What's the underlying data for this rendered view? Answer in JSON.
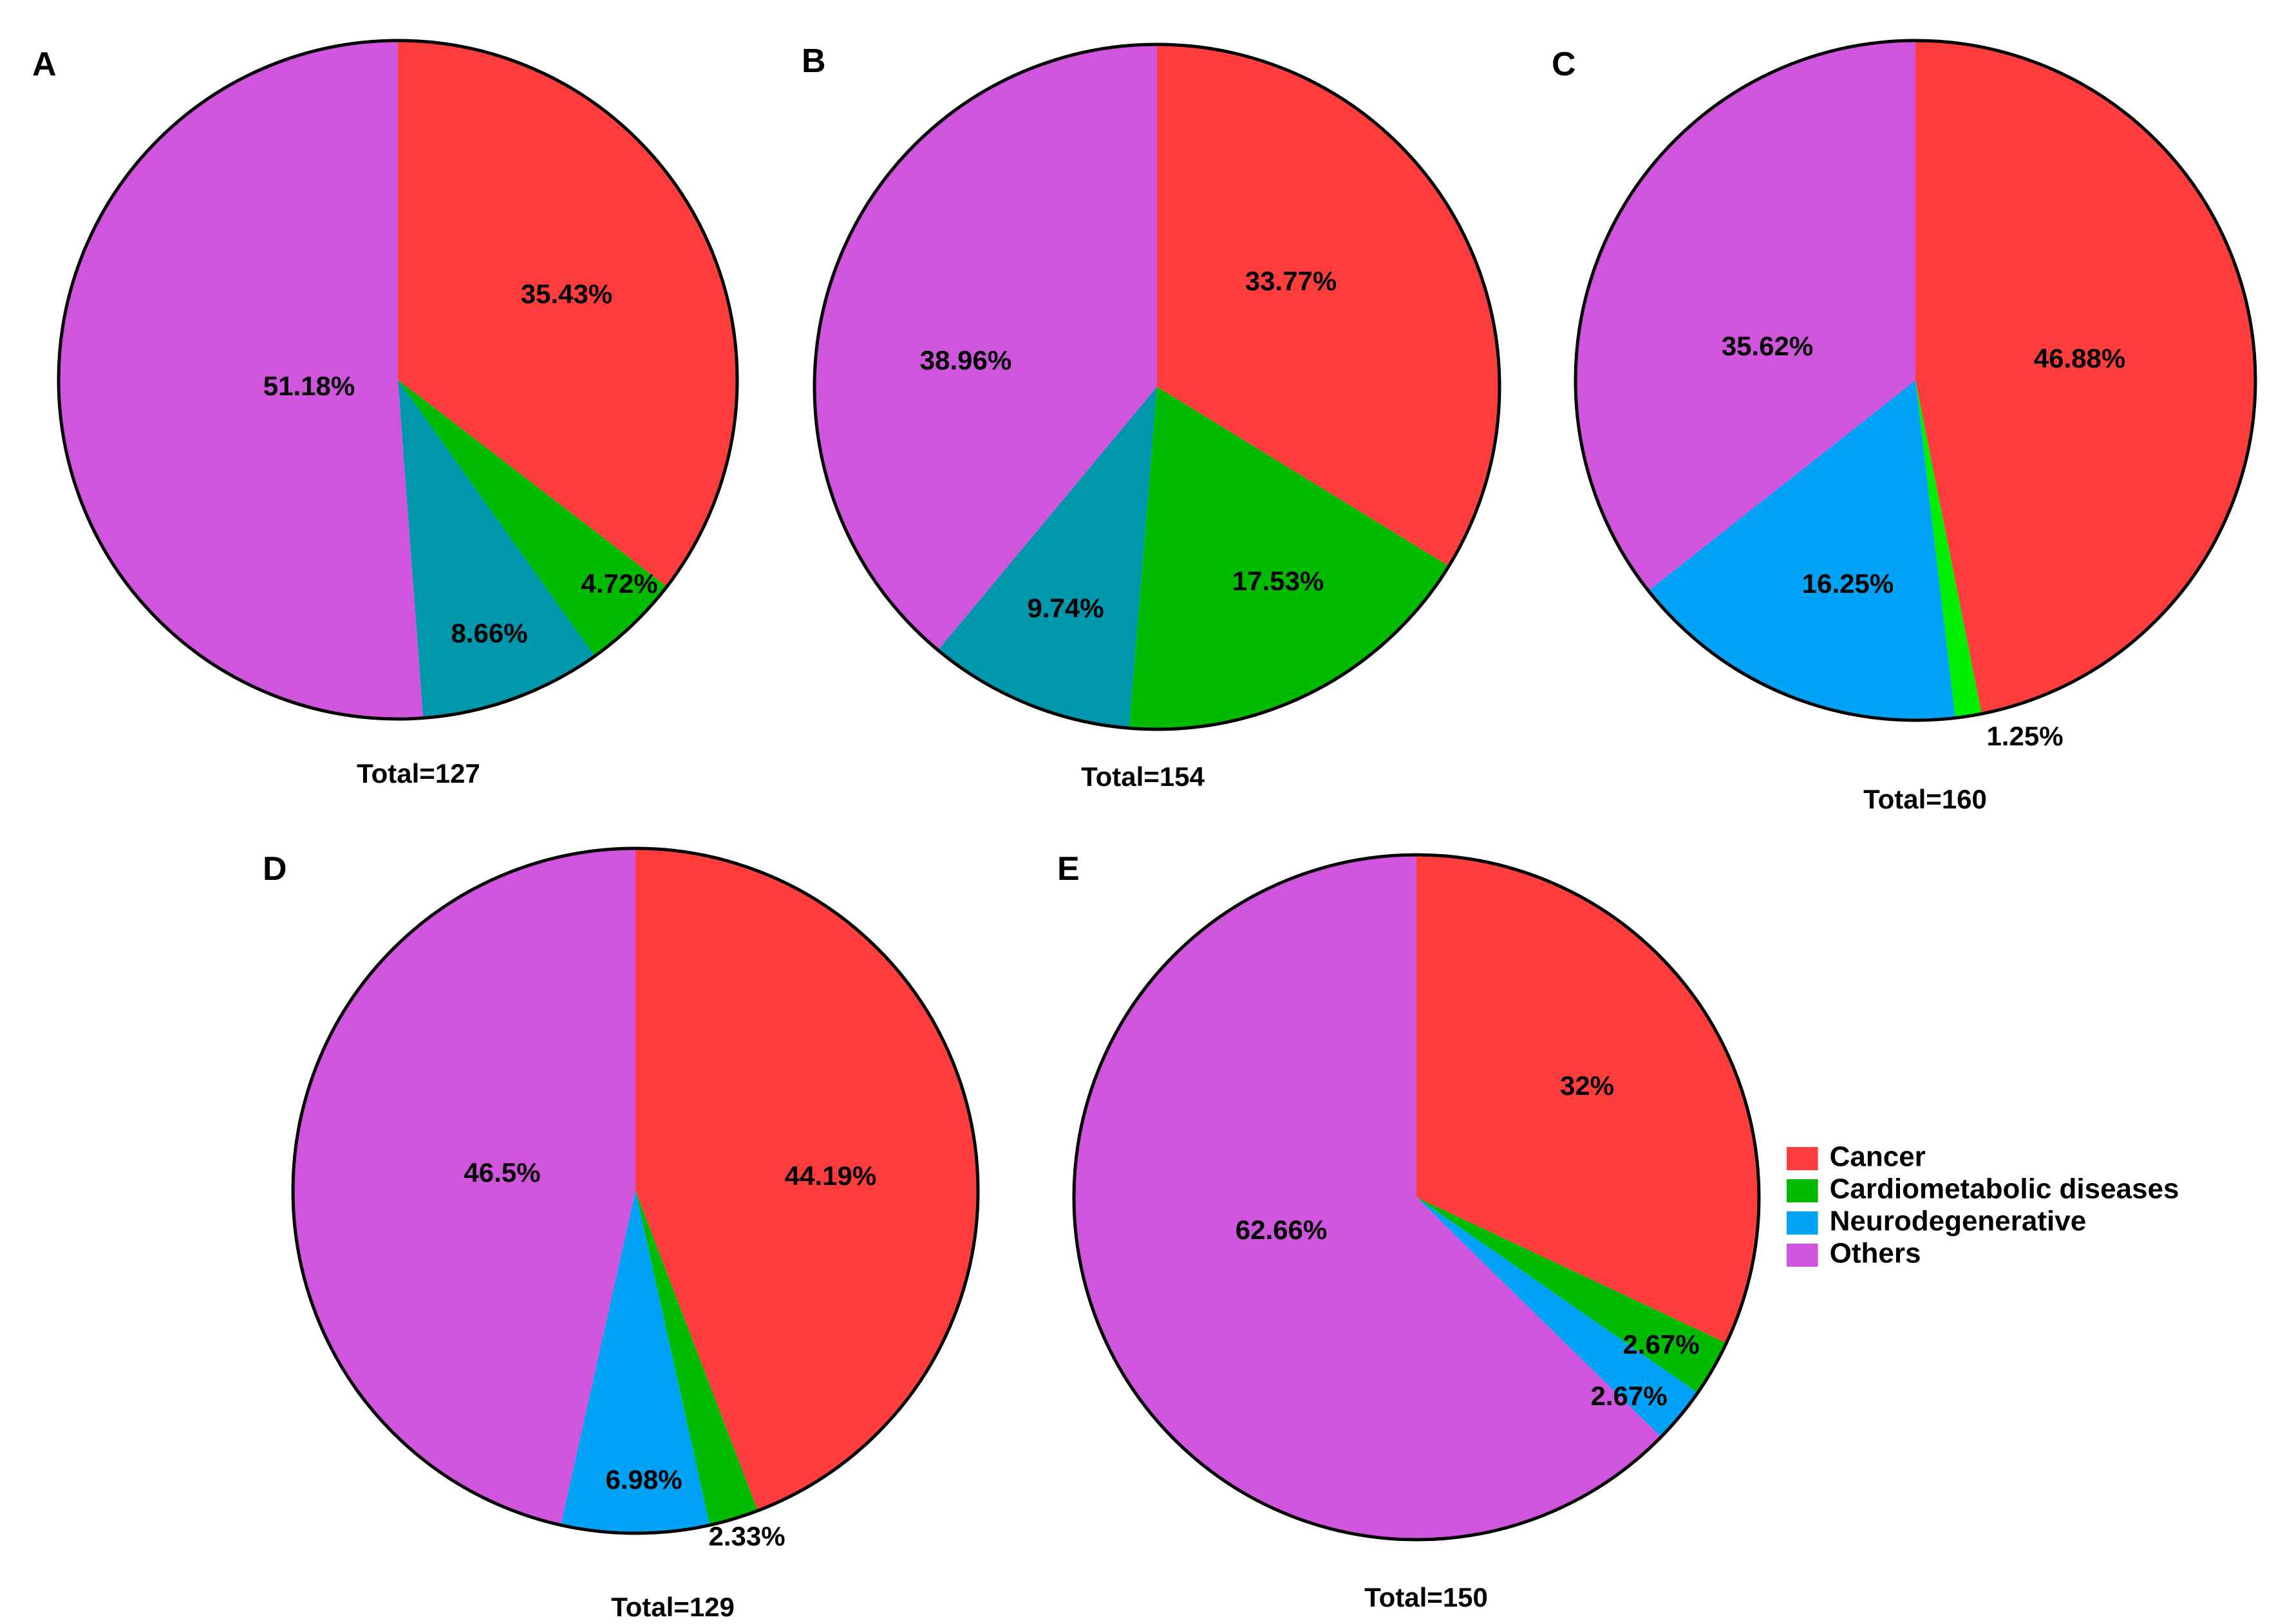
{
  "chart_data": [
    {
      "type": "pie",
      "panel": "A",
      "total_label": "Total=127",
      "slices": [
        {
          "category": "Cancer",
          "value": 35.43,
          "label": "35.43%",
          "color": "#ff3d3d"
        },
        {
          "category": "Cardiometabolic diseases",
          "value": 4.72,
          "label": "4.72%",
          "color": "#00bb00"
        },
        {
          "category": "Neurodegenerative",
          "value": 8.66,
          "label": "8.66%",
          "color": "#0097ad"
        },
        {
          "category": "Others",
          "value": 51.18,
          "label": "51.18%",
          "color": "#d055dd"
        }
      ]
    },
    {
      "type": "pie",
      "panel": "B",
      "total_label": "Total=154",
      "slices": [
        {
          "category": "Cancer",
          "value": 33.77,
          "label": "33.77%",
          "color": "#ff3d3d"
        },
        {
          "category": "Cardiometabolic diseases",
          "value": 17.53,
          "label": "17.53%",
          "color": "#00bb00"
        },
        {
          "category": "Neurodegenerative",
          "value": 9.74,
          "label": "9.74%",
          "color": "#0097ad"
        },
        {
          "category": "Others",
          "value": 38.96,
          "label": "38.96%",
          "color": "#d055dd"
        }
      ]
    },
    {
      "type": "pie",
      "panel": "C",
      "total_label": "Total=160",
      "slices": [
        {
          "category": "Cancer",
          "value": 46.88,
          "label": "46.88%",
          "color": "#ff3d3d"
        },
        {
          "category": "Cardiometabolic diseases",
          "value": 1.25,
          "label": "1.25%",
          "color": "#00ee00"
        },
        {
          "category": "Neurodegenerative",
          "value": 16.25,
          "label": "16.25%",
          "color": "#00a2f5"
        },
        {
          "category": "Others",
          "value": 35.62,
          "label": "35.62%",
          "color": "#d055dd"
        }
      ]
    },
    {
      "type": "pie",
      "panel": "D",
      "total_label": "Total=129",
      "slices": [
        {
          "category": "Cancer",
          "value": 44.19,
          "label": "44.19%",
          "color": "#ff3d3d"
        },
        {
          "category": "Cardiometabolic diseases",
          "value": 2.33,
          "label": "2.33%",
          "color": "#00bb00"
        },
        {
          "category": "Neurodegenerative",
          "value": 6.98,
          "label": "6.98%",
          "color": "#00a2f5"
        },
        {
          "category": "Others",
          "value": 46.5,
          "label": "46.5%",
          "color": "#d055dd"
        }
      ]
    },
    {
      "type": "pie",
      "panel": "E",
      "total_label": "Total=150",
      "slices": [
        {
          "category": "Cancer",
          "value": 32,
          "label": "32%",
          "color": "#ff3d3d"
        },
        {
          "category": "Cardiometabolic diseases",
          "value": 2.67,
          "label": "2.67%",
          "color": "#00bb00"
        },
        {
          "category": "Neurodegenerative",
          "value": 2.67,
          "label": "2.67%",
          "color": "#00a2f5"
        },
        {
          "category": "Others",
          "value": 62.66,
          "label": "62.66%",
          "color": "#d055dd"
        }
      ]
    }
  ],
  "legend": {
    "items": [
      {
        "label": "Cancer",
        "color": "#ff3d3d"
      },
      {
        "label": "Cardiometabolic diseases",
        "color": "#00bb00"
      },
      {
        "label": "Neurodegenerative",
        "color": "#00a2f5"
      },
      {
        "label": "Others",
        "color": "#d055dd"
      }
    ]
  }
}
